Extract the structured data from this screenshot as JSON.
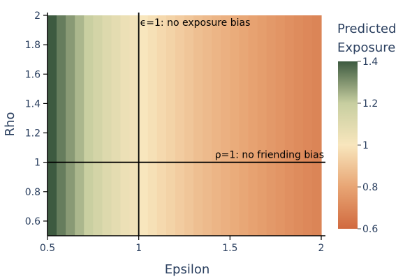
{
  "chart_data": {
    "type": "heatmap",
    "title": "",
    "xlabel": "Epsilon",
    "ylabel": "Rho",
    "xlim": [
      0.5,
      2.0
    ],
    "ylim": [
      0.5,
      2.0
    ],
    "x_ticks": [
      "0.5",
      "1",
      "1.5",
      "2"
    ],
    "x_tick_values": [
      0.5,
      1.0,
      1.5,
      2.0
    ],
    "y_ticks": [
      "0.6",
      "0.8",
      "1",
      "1.2",
      "1.4",
      "1.6",
      "1.8",
      "2"
    ],
    "y_tick_values": [
      0.6,
      0.8,
      1.0,
      1.2,
      1.4,
      1.6,
      1.8,
      2.0
    ],
    "x": [
      0.5,
      0.55,
      0.6,
      0.65,
      0.7,
      0.75,
      0.8,
      0.85,
      0.9,
      0.95,
      1.0,
      1.05,
      1.1,
      1.15,
      1.2,
      1.25,
      1.3,
      1.35,
      1.4,
      1.45,
      1.5,
      1.55,
      1.6,
      1.65,
      1.7,
      1.75,
      1.8,
      1.85,
      1.9,
      1.95
    ],
    "z_by_x": [
      1.41,
      1.34,
      1.29,
      1.24,
      1.19,
      1.15,
      1.11,
      1.08,
      1.05,
      1.03,
      1.0,
      0.98,
      0.96,
      0.94,
      0.92,
      0.9,
      0.88,
      0.865,
      0.85,
      0.835,
      0.82,
      0.805,
      0.79,
      0.775,
      0.76,
      0.745,
      0.73,
      0.715,
      0.7,
      0.69
    ],
    "colorbar": {
      "title_lines": [
        "Predicted",
        "Exposure"
      ],
      "range": [
        0.6,
        1.4
      ],
      "ticks": [
        "0.6",
        "0.8",
        "1",
        "1.2",
        "1.4"
      ],
      "tick_values": [
        0.6,
        0.8,
        1.0,
        1.2,
        1.4
      ],
      "colors": [
        "#d16a3f",
        "#e8a574",
        "#f8e6bd",
        "#c7cea0",
        "#3d5a40"
      ]
    },
    "reference_lines": [
      {
        "axis": "x",
        "value": 1.0,
        "label": "ϵ=1: no exposure bias"
      },
      {
        "axis": "y",
        "value": 1.0,
        "label": "ρ=1: no friending bias"
      }
    ]
  }
}
